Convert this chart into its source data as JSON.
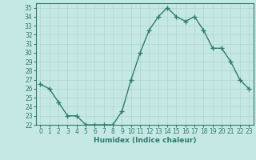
{
  "x": [
    0,
    1,
    2,
    3,
    4,
    5,
    6,
    7,
    8,
    9,
    10,
    11,
    12,
    13,
    14,
    15,
    16,
    17,
    18,
    19,
    20,
    21,
    22,
    23
  ],
  "y": [
    26.5,
    26.0,
    24.5,
    23.0,
    23.0,
    22.0,
    22.0,
    22.0,
    22.0,
    23.5,
    27.0,
    30.0,
    32.5,
    34.0,
    35.0,
    34.0,
    33.5,
    34.0,
    32.5,
    30.5,
    30.5,
    29.0,
    27.0,
    26.0
  ],
  "line_color": "#2d7c6e",
  "marker": "+",
  "marker_size": 4,
  "marker_linewidth": 1.0,
  "bg_color": "#c5e8e5",
  "grid_color": "#b0d8d4",
  "xlabel": "Humidex (Indice chaleur)",
  "xlim": [
    -0.5,
    23.5
  ],
  "ylim": [
    22,
    35.5
  ],
  "yticks": [
    22,
    23,
    24,
    25,
    26,
    27,
    28,
    29,
    30,
    31,
    32,
    33,
    34,
    35
  ],
  "xticks": [
    0,
    1,
    2,
    3,
    4,
    5,
    6,
    7,
    8,
    9,
    10,
    11,
    12,
    13,
    14,
    15,
    16,
    17,
    18,
    19,
    20,
    21,
    22,
    23
  ],
  "axis_color": "#2d7c6e",
  "tick_color": "#2d7c6e",
  "label_color": "#2d7c6e",
  "linewidth": 1.0,
  "tick_labelsize": 5.5,
  "xlabel_fontsize": 6.5
}
